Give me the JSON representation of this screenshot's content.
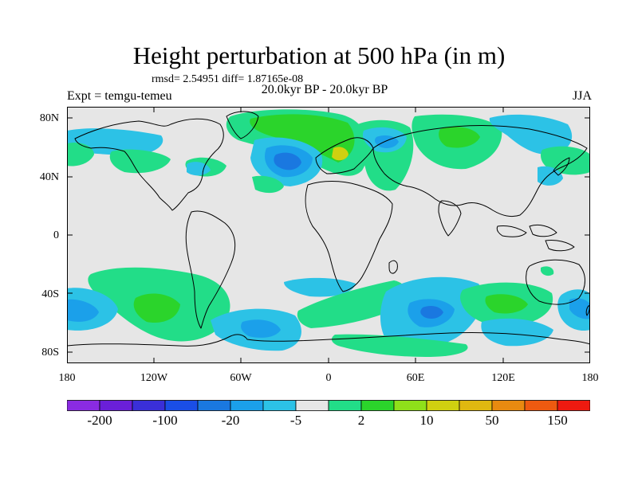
{
  "figure": {
    "title": "Height perturbation at 500 hPa (in m)",
    "stats": "rmsd= 2.54951 diff= 1.87165e-08",
    "experiment": "Expt = temgu-temeu",
    "period": "20.0kyr BP - 20.0kyr BP",
    "season": "JJA"
  },
  "axes": {
    "lat_ticks": [
      "80N",
      "40N",
      "0",
      "40S",
      "80S"
    ],
    "lon_ticks": [
      "180",
      "120W",
      "60W",
      "0",
      "60E",
      "120E",
      "180"
    ]
  },
  "colorbar": {
    "labels": [
      "-200",
      "-100",
      "-20",
      "-5",
      "2",
      "10",
      "50",
      "150"
    ],
    "colors": [
      "#8a2be2",
      "#6a1fd8",
      "#3a2fd8",
      "#1a4ee6",
      "#1a78e0",
      "#1ba0ea",
      "#2cc2e6",
      "#e6e6e6",
      "#22dd88",
      "#2bd42b",
      "#8fe01a",
      "#d0d010",
      "#e0b810",
      "#e88a10",
      "#ee5a10",
      "#ee1a10"
    ]
  },
  "colors": {
    "background": "#e6e6e6",
    "negative_light": "#2cc2e6",
    "negative_mid": "#1ba0ea",
    "negative_strong": "#1a78e0",
    "positive_light": "#22dd88",
    "positive_mid": "#2bd42b",
    "positive_strong": "#d0d010"
  }
}
